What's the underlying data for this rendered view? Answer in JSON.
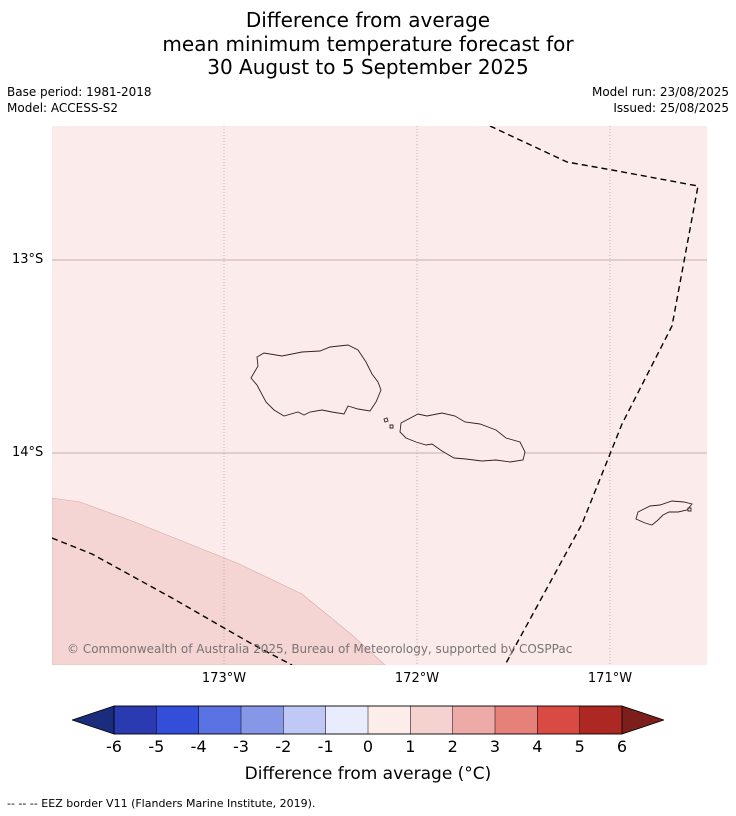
{
  "title": {
    "line1": "Difference from average",
    "line2": "mean minimum temperature forecast for",
    "line3": "30 August to 5 September 2025"
  },
  "meta": {
    "base_period": "Base period: 1981-2018",
    "model": "Model: ACCESS-S2",
    "model_run": "Model run: 23/08/2025",
    "issued": "Issued: 25/08/2025"
  },
  "map": {
    "lat_labels": [
      "13°S",
      "14°S"
    ],
    "lon_labels": [
      "173°W",
      "172°W",
      "171°W"
    ],
    "copyright": "© Commonwealth of Australia 2025, Bureau of Meteorology, supported by COSPPac",
    "colors": {
      "background_anomaly": "#fbeceb",
      "warm_anomaly": "#f5d5d3",
      "grid": "#b79a99",
      "coast": "#3a1c24",
      "eez": "#000000"
    }
  },
  "colorbar": {
    "ticks": [
      "-6",
      "-5",
      "-4",
      "-3",
      "-2",
      "-1",
      "0",
      "1",
      "2",
      "3",
      "4",
      "5",
      "6"
    ],
    "colors": [
      "#1c2c7c",
      "#2a3bb2",
      "#334fd9",
      "#5b72e2",
      "#8797e8",
      "#c0c8f5",
      "#e8ecfd",
      "#fcecea",
      "#f5d2d0",
      "#edaaa6",
      "#e5807b",
      "#da4a44",
      "#ad2823",
      "#7c1f1c"
    ],
    "label": "Difference from average (°C)"
  },
  "legend": {
    "text": "--  --  -- EEZ border V11 (Flanders Marine Institute, 2019)."
  }
}
